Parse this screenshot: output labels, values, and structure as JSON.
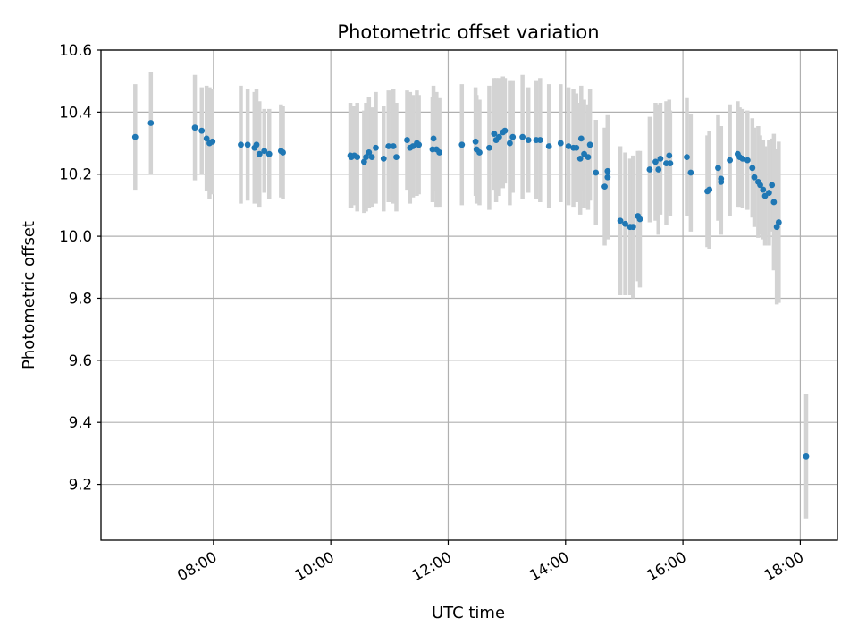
{
  "chart_data": {
    "type": "scatter",
    "title": "Photometric offset variation",
    "xlabel": "UTC time",
    "ylabel": "Photometric offset",
    "xlim": [
      "06:05",
      "18:38"
    ],
    "ylim": [
      9.02,
      10.6
    ],
    "x_ticks": [
      "08:00",
      "10:00",
      "12:00",
      "14:00",
      "16:00",
      "18:00"
    ],
    "y_ticks": [
      9.2,
      9.4,
      9.6,
      9.8,
      10.0,
      10.2,
      10.4,
      10.6
    ],
    "y_tick_labels": [
      "9.2",
      "9.4",
      "9.6",
      "9.8",
      "10.0",
      "10.2",
      "10.4",
      "10.6"
    ],
    "grid": true,
    "colors": {
      "point": "#1f77b4",
      "errorbar": "#d3d3d3",
      "grid": "#b0b0b0"
    },
    "series": [
      {
        "points": [
          [
            "06:40",
            10.32,
            0.17
          ],
          [
            "06:56",
            10.365,
            0.165
          ],
          [
            "07:41",
            10.35,
            0.17
          ],
          [
            "07:48",
            10.34,
            0.14
          ],
          [
            "07:53",
            10.315,
            0.17
          ],
          [
            "07:56",
            10.3,
            0.18
          ],
          [
            "07:59",
            10.305,
            0.17
          ],
          [
            "08:28",
            10.295,
            0.19
          ],
          [
            "08:35",
            10.295,
            0.18
          ],
          [
            "08:42",
            10.285,
            0.18
          ],
          [
            "08:44",
            10.295,
            0.18
          ],
          [
            "08:47",
            10.265,
            0.17
          ],
          [
            "08:52",
            10.275,
            0.135
          ],
          [
            "08:57",
            10.265,
            0.145
          ],
          [
            "09:09",
            10.275,
            0.15
          ],
          [
            "09:11",
            10.27,
            0.15
          ],
          [
            "10:20",
            10.26,
            0.17
          ],
          [
            "10:21",
            10.255,
            0.165
          ],
          [
            "10:24",
            10.26,
            0.16
          ],
          [
            "10:27",
            10.255,
            0.175
          ],
          [
            "10:34",
            10.24,
            0.165
          ],
          [
            "10:36",
            10.255,
            0.175
          ],
          [
            "10:39",
            10.27,
            0.18
          ],
          [
            "10:42",
            10.255,
            0.16
          ],
          [
            "10:46",
            10.285,
            0.18
          ],
          [
            "10:54",
            10.25,
            0.17
          ],
          [
            "10:59",
            10.29,
            0.18
          ],
          [
            "11:04",
            10.29,
            0.185
          ],
          [
            "11:07",
            10.255,
            0.175
          ],
          [
            "11:18",
            10.31,
            0.16
          ],
          [
            "11:21",
            10.285,
            0.18
          ],
          [
            "11:24",
            10.29,
            0.165
          ],
          [
            "11:28",
            10.3,
            0.17
          ],
          [
            "11:30",
            10.295,
            0.16
          ],
          [
            "11:44",
            10.28,
            0.17
          ],
          [
            "11:45",
            10.315,
            0.17
          ],
          [
            "11:48",
            10.28,
            0.185
          ],
          [
            "11:51",
            10.27,
            0.175
          ],
          [
            "12:14",
            10.295,
            0.195
          ],
          [
            "12:28",
            10.305,
            0.175
          ],
          [
            "12:29",
            10.28,
            0.175
          ],
          [
            "12:32",
            10.27,
            0.17
          ],
          [
            "12:42",
            10.285,
            0.2
          ],
          [
            "12:47",
            10.33,
            0.18
          ],
          [
            "12:49",
            10.31,
            0.2
          ],
          [
            "12:52",
            10.32,
            0.19
          ],
          [
            "12:56",
            10.335,
            0.18
          ],
          [
            "12:58",
            10.34,
            0.17
          ],
          [
            "13:03",
            10.3,
            0.2
          ],
          [
            "13:06",
            10.32,
            0.18
          ],
          [
            "13:16",
            10.32,
            0.2
          ],
          [
            "13:22",
            10.31,
            0.17
          ],
          [
            "13:30",
            10.31,
            0.19
          ],
          [
            "13:34",
            10.31,
            0.2
          ],
          [
            "13:43",
            10.29,
            0.2
          ],
          [
            "13:55",
            10.3,
            0.19
          ],
          [
            "14:03",
            10.29,
            0.19
          ],
          [
            "14:08",
            10.285,
            0.19
          ],
          [
            "14:11",
            10.285,
            0.175
          ],
          [
            "14:15",
            10.25,
            0.18
          ],
          [
            "14:16",
            10.315,
            0.17
          ],
          [
            "14:19",
            10.265,
            0.175
          ],
          [
            "14:23",
            10.255,
            0.17
          ],
          [
            "14:25",
            10.295,
            0.18
          ],
          [
            "14:31",
            10.205,
            0.17
          ],
          [
            "14:40",
            10.16,
            0.19
          ],
          [
            "14:43",
            10.21,
            0.18
          ],
          [
            "14:43",
            10.19,
            0.2
          ],
          [
            "14:56",
            10.05,
            0.24
          ],
          [
            "15:01",
            10.04,
            0.23
          ],
          [
            "15:06",
            10.03,
            0.22
          ],
          [
            "15:09",
            10.03,
            0.23
          ],
          [
            "15:14",
            10.065,
            0.21
          ],
          [
            "15:16",
            10.055,
            0.22
          ],
          [
            "15:26",
            10.215,
            0.17
          ],
          [
            "15:32",
            10.24,
            0.19
          ],
          [
            "15:35",
            10.215,
            0.21
          ],
          [
            "15:37",
            10.25,
            0.18
          ],
          [
            "15:43",
            10.235,
            0.2
          ],
          [
            "15:46",
            10.26,
            0.18
          ],
          [
            "15:47",
            10.235,
            0.17
          ],
          [
            "16:04",
            10.255,
            0.19
          ],
          [
            "16:08",
            10.205,
            0.19
          ],
          [
            "16:25",
            10.145,
            0.18
          ],
          [
            "16:27",
            10.15,
            0.19
          ],
          [
            "16:36",
            10.22,
            0.17
          ],
          [
            "16:39",
            10.185,
            0.17
          ],
          [
            "16:39",
            10.175,
            0.17
          ],
          [
            "16:48",
            10.245,
            0.18
          ],
          [
            "16:56",
            10.265,
            0.17
          ],
          [
            "16:58",
            10.255,
            0.16
          ],
          [
            "17:01",
            10.25,
            0.16
          ],
          [
            "17:06",
            10.245,
            0.16
          ],
          [
            "17:11",
            10.22,
            0.16
          ],
          [
            "17:13",
            10.19,
            0.16
          ],
          [
            "17:17",
            10.175,
            0.18
          ],
          [
            "17:19",
            10.165,
            0.16
          ],
          [
            "17:22",
            10.15,
            0.16
          ],
          [
            "17:24",
            10.13,
            0.16
          ],
          [
            "17:28",
            10.14,
            0.17
          ],
          [
            "17:31",
            10.165,
            0.15
          ],
          [
            "17:33",
            10.11,
            0.22
          ],
          [
            "17:36",
            10.03,
            0.25
          ],
          [
            "17:38",
            10.045,
            0.26
          ],
          [
            "18:06",
            9.29,
            0.2
          ]
        ]
      }
    ]
  }
}
